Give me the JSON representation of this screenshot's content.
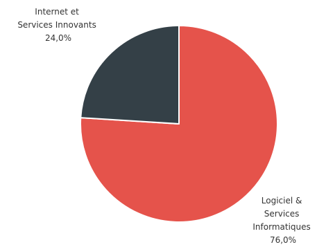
{
  "chart_data": {
    "type": "pie",
    "slices": [
      {
        "label_lines": [
          "Logiciel &",
          "Services",
          "Informatiques"
        ],
        "value_label": "76,0%",
        "value": 76.0,
        "color": "#e5534b"
      },
      {
        "label_lines": [
          "Internet et",
          "Services Innovants"
        ],
        "value_label": "24,0%",
        "value": 24.0,
        "color": "#344047"
      }
    ],
    "legend": "none",
    "slice_border_color": "#ffffff"
  }
}
